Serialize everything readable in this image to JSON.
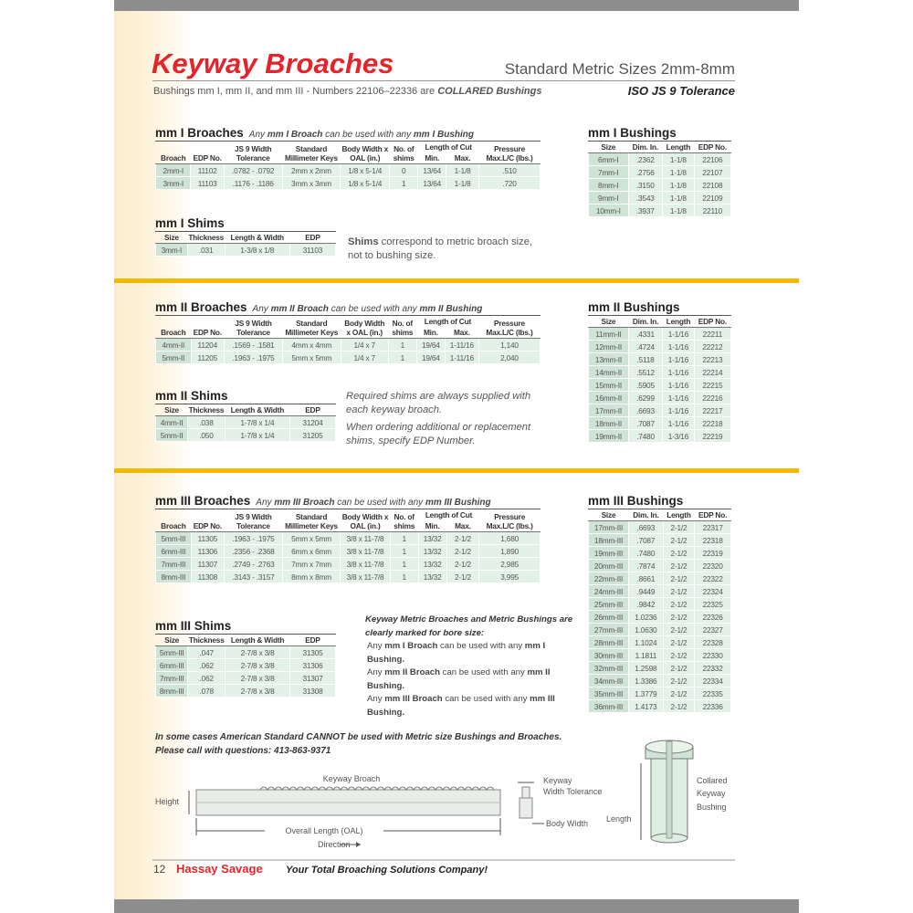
{
  "header": {
    "title": "Keyway Broaches",
    "subtitle": "Standard Metric Sizes 2mm-8mm",
    "note": "Bushings mm I, mm II, and mm III - Numbers 22106–22336 are",
    "note_emphasis": "COLLARED Bushings",
    "tolerance": "ISO JS 9 Tolerance"
  },
  "broach_headers": [
    "Broach",
    "EDP No.",
    "JS 9 Width Tolerance",
    "Standard Millimeter Keys",
    "Body Width x OAL (in.)",
    "No. of shims",
    "Min.",
    "Max.",
    "Pressure Max.L/C (lbs.)"
  ],
  "length_of_cut": "Length of Cut",
  "shim_headers": [
    "Size",
    "Thickness",
    "Length & Width",
    "EDP"
  ],
  "bushing_headers": [
    "Size",
    "Dim. In.",
    "Length",
    "EDP No."
  ],
  "broaches": [
    {
      "title": "mm I Broaches",
      "note": [
        "Any ",
        "mm I Broach",
        " can be used with any ",
        "mm I Bushing"
      ],
      "rows": [
        [
          "2mm-I",
          "11102",
          ".0782 - .0792",
          "2mm x 2mm",
          "1/8 x 5-1/4",
          "0",
          "13/64",
          "1-1/8",
          ".510"
        ],
        [
          "3mm-I",
          "11103",
          ".1176 - .1186",
          "3mm x 3mm",
          "1/8 x 5-1/4",
          "1",
          "13/64",
          "1-1/8",
          ".720"
        ]
      ]
    },
    {
      "title": "mm II Broaches",
      "note": [
        "Any ",
        "mm II Broach",
        " can be used with any ",
        "mm II Bushing"
      ],
      "rows": [
        [
          "4mm-II",
          "11204",
          ".1569 - .1581",
          "4mm x 4mm",
          "1/4 x 7",
          "1",
          "19/64",
          "1-11/16",
          "1,140"
        ],
        [
          "5mm-II",
          "11205",
          ".1963 - .1975",
          "5mm x 5mm",
          "1/4 x 7",
          "1",
          "19/64",
          "1-11/16",
          "2,040"
        ]
      ]
    },
    {
      "title": "mm III Broaches",
      "note": [
        "Any ",
        "mm III Broach",
        " can be used with any ",
        "mm III Bushing"
      ],
      "rows": [
        [
          "5mm-III",
          "11305",
          ".1963 - .1975",
          "5mm x 5mm",
          "3/8 x 11-7/8",
          "1",
          "13/32",
          "2-1/2",
          "1,680"
        ],
        [
          "6mm-III",
          "11306",
          ".2356 - .2368",
          "6mm x 6mm",
          "3/8 x 11-7/8",
          "1",
          "13/32",
          "2-1/2",
          "1,890"
        ],
        [
          "7mm-III",
          "11307",
          ".2749 - .2763",
          "7mm x 7mm",
          "3/8 x 11-7/8",
          "1",
          "13/32",
          "2-1/2",
          "2,985"
        ],
        [
          "8mm-III",
          "11308",
          ".3143 - .3157",
          "8mm x 8mm",
          "3/8 x 11-7/8",
          "1",
          "13/32",
          "2-1/2",
          "3,995"
        ]
      ]
    }
  ],
  "shims": [
    {
      "title": "mm I Shims",
      "rows": [
        [
          "3mm-I",
          ".031",
          "1-3/8 x 1/8",
          "31103"
        ]
      ]
    },
    {
      "title": "mm II Shims",
      "rows": [
        [
          "4mm-II",
          ".038",
          "1-7/8 x 1/4",
          "31204"
        ],
        [
          "5mm-II",
          ".050",
          "1-7/8 x 1/4",
          "31205"
        ]
      ]
    },
    {
      "title": "mm III Shims",
      "rows": [
        [
          "5mm-III",
          ".047",
          "2-7/8 x 3/8",
          "31305"
        ],
        [
          "6mm-III",
          ".062",
          "2-7/8 x 3/8",
          "31306"
        ],
        [
          "7mm-III",
          ".062",
          "2-7/8 x 3/8",
          "31307"
        ],
        [
          "8mm-III",
          ".078",
          "2-7/8 x 3/8",
          "31308"
        ]
      ]
    }
  ],
  "bushings": [
    {
      "title": "mm I Bushings",
      "rows": [
        [
          "6mm-I",
          ".2362",
          "1-1/8",
          "22106"
        ],
        [
          "7mm-I",
          ".2756",
          "1-1/8",
          "22107"
        ],
        [
          "8mm-I",
          ".3150",
          "1-1/8",
          "22108"
        ],
        [
          "9mm-I",
          ".3543",
          "1-1/8",
          "22109"
        ],
        [
          "10mm-I",
          ".3937",
          "1-1/8",
          "22110"
        ]
      ]
    },
    {
      "title": "mm II Bushings",
      "rows": [
        [
          "11mm-II",
          ".4331",
          "1-1/16",
          "22211"
        ],
        [
          "12mm-II",
          ".4724",
          "1-1/16",
          "22212"
        ],
        [
          "13mm-II",
          ".5118",
          "1-1/16",
          "22213"
        ],
        [
          "14mm-II",
          ".5512",
          "1-1/16",
          "22214"
        ],
        [
          "15mm-II",
          ".5905",
          "1-1/16",
          "22215"
        ],
        [
          "16mm-II",
          ".6299",
          "1-1/16",
          "22216"
        ],
        [
          "17mm-II",
          ".6693",
          "1-1/16",
          "22217"
        ],
        [
          "18mm-II",
          ".7087",
          "1-1/16",
          "22218"
        ],
        [
          "19mm-II",
          ".7480",
          "1-3/16",
          "22219"
        ]
      ]
    },
    {
      "title": "mm III Bushings",
      "rows": [
        [
          "17mm-III",
          ".6693",
          "2-1/2",
          "22317"
        ],
        [
          "18mm-III",
          ".7087",
          "2-1/2",
          "22318"
        ],
        [
          "19mm-III",
          ".7480",
          "2-1/2",
          "22319"
        ],
        [
          "20mm-III",
          ".7874",
          "2-1/2",
          "22320"
        ],
        [
          "22mm-III",
          ".8661",
          "2-1/2",
          "22322"
        ],
        [
          "24mm-III",
          ".9449",
          "2-1/2",
          "22324"
        ],
        [
          "25mm-III",
          ".9842",
          "2-1/2",
          "22325"
        ],
        [
          "26mm-III",
          "1.0236",
          "2-1/2",
          "22326"
        ],
        [
          "27mm-III",
          "1.0630",
          "2-1/2",
          "22327"
        ],
        [
          "28mm-III",
          "1.1024",
          "2-1/2",
          "22328"
        ],
        [
          "30mm-III",
          "1.1811",
          "2-1/2",
          "22330"
        ],
        [
          "32mm-III",
          "1.2598",
          "2-1/2",
          "22332"
        ],
        [
          "34mm-III",
          "1.3386",
          "2-1/2",
          "22334"
        ],
        [
          "35mm-III",
          "1.3779",
          "2-1/2",
          "22335"
        ],
        [
          "36mm-III",
          "1.4173",
          "2-1/2",
          "22336"
        ]
      ]
    }
  ],
  "shim_note_1": [
    "Shims",
    " correspond to metric broach size, not to bushing size."
  ],
  "shim_note_2": [
    "Required shims are always supplied with each keyway broach.",
    "When ordering additional or replacement shims, specify EDP Number."
  ],
  "marking_note": {
    "heading": "Keyway Metric Broaches and Metric Bushings are clearly marked for bore size:",
    "lines": [
      [
        "Any ",
        "mm I Broach",
        " can be used with any ",
        "mm I Bushing."
      ],
      [
        "Any ",
        "mm II Broach",
        " can be used with any ",
        "mm II Bushing."
      ],
      [
        "Any ",
        "mm III Broach",
        " can be used with any ",
        "mm III Bushing."
      ]
    ]
  },
  "footnote": [
    "In some cases American Standard CANNOT be used with Metric size  Bushings and Broaches.",
    "Please call with questions: 413-863-9371"
  ],
  "diagram": {
    "broach": "Keyway Broach",
    "height": "Height",
    "oal": "Overall Length (OAL)",
    "direction": "Direction",
    "width_tolerance": [
      "Keyway",
      "Width Tolerance"
    ],
    "body_width": "Body Width",
    "length": "Length",
    "bushing": [
      "Collared",
      "Keyway",
      "Bushing"
    ]
  },
  "footer": {
    "page": "12",
    "brand": "Hassay Savage",
    "tagline": "Your Total Broaching Solutions Company!"
  }
}
